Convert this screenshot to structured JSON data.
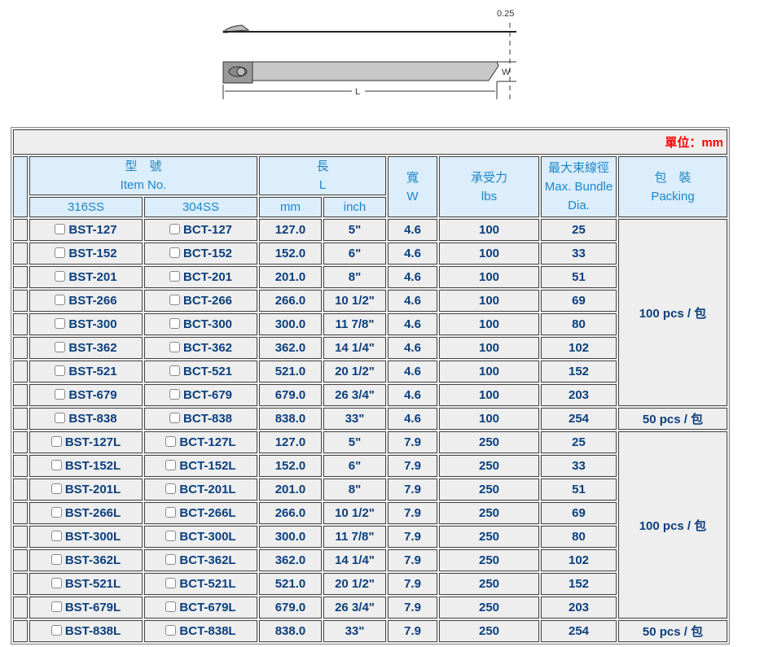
{
  "diagram": {
    "thickness_label": "0.25",
    "width_label": "W",
    "length_label": "L"
  },
  "unit_label": "單位：mm",
  "headers": {
    "item_zh": "型　號",
    "item_en": "Item No.",
    "length_zh": "長",
    "length_en": "L",
    "width_zh": "寬",
    "width_en": "W",
    "strength_zh": "承受力",
    "strength_en": "lbs",
    "bundle_zh": "最大束線徑",
    "bundle_en": "Max. Bundle Dia.",
    "packing_zh": "包　裝",
    "packing_en": "Packing",
    "col_316": "316SS",
    "col_304": "304SS",
    "col_mm": "mm",
    "col_inch": "inch"
  },
  "rows": [
    {
      "ss316": "BST-127",
      "ss304": "BCT-127",
      "mm": "127.0",
      "inch": "5\"",
      "w": "4.6",
      "lbs": "100",
      "dia": "25",
      "packing": "100 pcs / 包",
      "span": 8
    },
    {
      "ss316": "BST-152",
      "ss304": "BCT-152",
      "mm": "152.0",
      "inch": "6\"",
      "w": "4.6",
      "lbs": "100",
      "dia": "33"
    },
    {
      "ss316": "BST-201",
      "ss304": "BCT-201",
      "mm": "201.0",
      "inch": "8\"",
      "w": "4.6",
      "lbs": "100",
      "dia": "51"
    },
    {
      "ss316": "BST-266",
      "ss304": "BCT-266",
      "mm": "266.0",
      "inch": "10 1/2\"",
      "w": "4.6",
      "lbs": "100",
      "dia": "69"
    },
    {
      "ss316": "BST-300",
      "ss304": "BCT-300",
      "mm": "300.0",
      "inch": "11 7/8\"",
      "w": "4.6",
      "lbs": "100",
      "dia": "80"
    },
    {
      "ss316": "BST-362",
      "ss304": "BCT-362",
      "mm": "362.0",
      "inch": "14 1/4\"",
      "w": "4.6",
      "lbs": "100",
      "dia": "102"
    },
    {
      "ss316": "BST-521",
      "ss304": "BCT-521",
      "mm": "521.0",
      "inch": "20 1/2\"",
      "w": "4.6",
      "lbs": "100",
      "dia": "152"
    },
    {
      "ss316": "BST-679",
      "ss304": "BCT-679",
      "mm": "679.0",
      "inch": "26 3/4\"",
      "w": "4.6",
      "lbs": "100",
      "dia": "203"
    },
    {
      "ss316": "BST-838",
      "ss304": "BCT-838",
      "mm": "838.0",
      "inch": "33\"",
      "w": "4.6",
      "lbs": "100",
      "dia": "254",
      "packing": "50 pcs / 包",
      "span": 1
    },
    {
      "ss316": "BST-127L",
      "ss304": "BCT-127L",
      "mm": "127.0",
      "inch": "5\"",
      "w": "7.9",
      "lbs": "250",
      "dia": "25",
      "packing": "100 pcs / 包",
      "span": 8
    },
    {
      "ss316": "BST-152L",
      "ss304": "BCT-152L",
      "mm": "152.0",
      "inch": "6\"",
      "w": "7.9",
      "lbs": "250",
      "dia": "33"
    },
    {
      "ss316": "BST-201L",
      "ss304": "BCT-201L",
      "mm": "201.0",
      "inch": "8\"",
      "w": "7.9",
      "lbs": "250",
      "dia": "51"
    },
    {
      "ss316": "BST-266L",
      "ss304": "BCT-266L",
      "mm": "266.0",
      "inch": "10 1/2\"",
      "w": "7.9",
      "lbs": "250",
      "dia": "69"
    },
    {
      "ss316": "BST-300L",
      "ss304": "BCT-300L",
      "mm": "300.0",
      "inch": "11 7/8\"",
      "w": "7.9",
      "lbs": "250",
      "dia": "80"
    },
    {
      "ss316": "BST-362L",
      "ss304": "BCT-362L",
      "mm": "362.0",
      "inch": "14 1/4\"",
      "w": "7.9",
      "lbs": "250",
      "dia": "102"
    },
    {
      "ss316": "BST-521L",
      "ss304": "BCT-521L",
      "mm": "521.0",
      "inch": "20 1/2\"",
      "w": "7.9",
      "lbs": "250",
      "dia": "152"
    },
    {
      "ss316": "BST-679L",
      "ss304": "BCT-679L",
      "mm": "679.0",
      "inch": "26 3/4\"",
      "w": "7.9",
      "lbs": "250",
      "dia": "203"
    },
    {
      "ss316": "BST-838L",
      "ss304": "BCT-838L",
      "mm": "838.0",
      "inch": "33\"",
      "w": "7.9",
      "lbs": "250",
      "dia": "254",
      "packing": "50 pcs / 包",
      "span": 1
    }
  ]
}
